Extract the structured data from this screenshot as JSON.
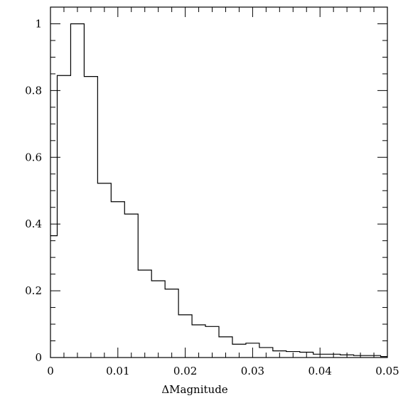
{
  "chart_data": {
    "type": "histogram",
    "title": "",
    "xlabel": "ΔMagnitude",
    "ylabel": "",
    "xlim": [
      0,
      0.05
    ],
    "ylim": [
      0,
      1.05
    ],
    "x_ticks": [
      0,
      0.01,
      0.02,
      0.03,
      0.04,
      0.05
    ],
    "x_tick_labels": [
      "0",
      "0.01",
      "0.02",
      "0.03",
      "0.04",
      "0.05"
    ],
    "y_ticks": [
      0,
      0.2,
      0.4,
      0.6,
      0.8,
      1
    ],
    "y_tick_labels": [
      "0",
      "0.2",
      "0.4",
      "0.6",
      "0.8",
      "1"
    ],
    "bin_edges": [
      0,
      0.001,
      0.003,
      0.005,
      0.007,
      0.009,
      0.011,
      0.013,
      0.015,
      0.017,
      0.019,
      0.021,
      0.023,
      0.025,
      0.027,
      0.029,
      0.031,
      0.033,
      0.035,
      0.037,
      0.039,
      0.041,
      0.043,
      0.045,
      0.047,
      0.049,
      0.05
    ],
    "values": [
      0.365,
      0.845,
      1.0,
      0.842,
      0.522,
      0.467,
      0.43,
      0.262,
      0.23,
      0.205,
      0.128,
      0.098,
      0.093,
      0.062,
      0.04,
      0.043,
      0.03,
      0.02,
      0.018,
      0.016,
      0.01,
      0.01,
      0.008,
      0.006,
      0.006,
      0.003
    ],
    "grid": false
  }
}
